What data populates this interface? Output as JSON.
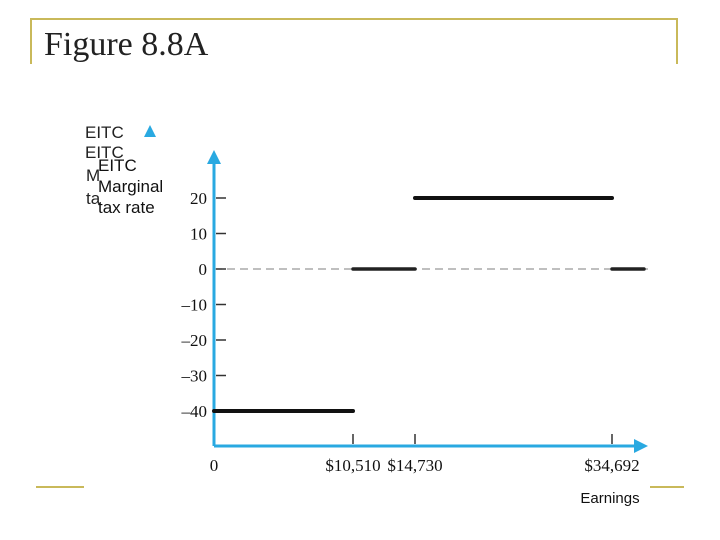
{
  "slide": {
    "title": "Figure 8.8A"
  },
  "colors": {
    "axis": "#29a9e1",
    "line": "#111111",
    "zero_line": "#999999",
    "frame": "#c9b95a"
  },
  "chart_data": {
    "type": "line",
    "title": "",
    "ylabel_lines": [
      "EITC",
      "Marginal",
      "tax rate"
    ],
    "ghost_label_lines": [
      "EITC",
      "EITC",
      "M",
      "ta"
    ],
    "xlabel": "Earnings",
    "x_origin_label": "0",
    "x_ticks": [
      {
        "value": 10510,
        "label": "$10,510"
      },
      {
        "value": 14730,
        "label": "$14,730"
      },
      {
        "value": 34692,
        "label": "$34,692"
      }
    ],
    "y_ticks": [
      {
        "value": 20,
        "label": "20"
      },
      {
        "value": 10,
        "label": "10"
      },
      {
        "value": 0,
        "label": "0"
      },
      {
        "value": -10,
        "label": "–10"
      },
      {
        "value": -20,
        "label": "–20"
      },
      {
        "value": -30,
        "label": "–30"
      },
      {
        "value": -40,
        "label": "–40"
      }
    ],
    "ylim": [
      -48,
      30
    ],
    "segments": [
      {
        "x_start": 0,
        "x_end": 10510,
        "y": -40
      },
      {
        "x_start": 10510,
        "x_end": 14730,
        "y": 0
      },
      {
        "x_start": 14730,
        "x_end": 34692,
        "y": 20
      },
      {
        "x_start": 34692,
        "x_end": 37300,
        "y": 0
      }
    ],
    "zero_line": true
  }
}
